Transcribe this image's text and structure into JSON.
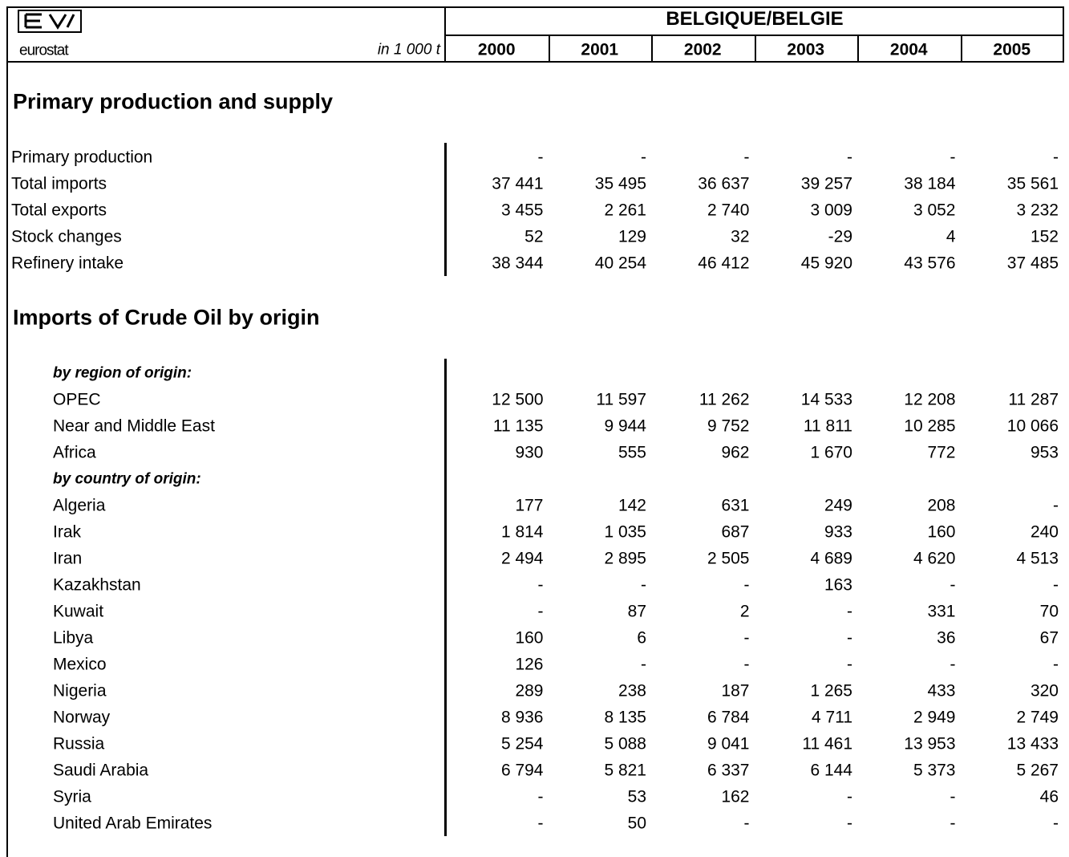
{
  "header": {
    "logo_text": "eurostat",
    "unit": "in 1 000 t",
    "country": "BELGIQUE/BELGIE",
    "years": [
      "2000",
      "2001",
      "2002",
      "2003",
      "2004",
      "2005"
    ]
  },
  "sections": [
    {
      "title": "Primary production and supply",
      "rows": [
        {
          "label": "Primary production",
          "values": [
            "-",
            "-",
            "-",
            "-",
            "-",
            "-"
          ]
        },
        {
          "label": "Total imports",
          "values": [
            "37 441",
            "35 495",
            "36 637",
            "39 257",
            "38 184",
            "35 561"
          ]
        },
        {
          "label": "Total exports",
          "values": [
            "3 455",
            "2 261",
            "2 740",
            "3 009",
            "3 052",
            "3 232"
          ]
        },
        {
          "label": "Stock changes",
          "values": [
            "52",
            "129",
            "32",
            "-29",
            "4",
            "152"
          ]
        },
        {
          "label": "Refinery intake",
          "values": [
            "38 344",
            "40 254",
            "46 412",
            "45 920",
            "43 576",
            "37 485"
          ]
        }
      ]
    },
    {
      "title": "Imports of Crude Oil by origin",
      "rows": [
        {
          "label": "by region of origin:"
        },
        {
          "label": "OPEC",
          "values": [
            "12 500",
            "11 597",
            "11 262",
            "14 533",
            "12 208",
            "11 287"
          ]
        },
        {
          "label": "Near and Middle East",
          "values": [
            "11 135",
            "9 944",
            "9 752",
            "11 811",
            "10 285",
            "10 066"
          ]
        },
        {
          "label": "Africa",
          "values": [
            "930",
            "555",
            "962",
            "1 670",
            "772",
            "953"
          ]
        },
        {
          "label": "by country of origin:"
        },
        {
          "label": "Algeria",
          "values": [
            "177",
            "142",
            "631",
            "249",
            "208",
            "-"
          ]
        },
        {
          "label": "Irak",
          "values": [
            "1 814",
            "1 035",
            "687",
            "933",
            "160",
            "240"
          ]
        },
        {
          "label": "Iran",
          "values": [
            "2 494",
            "2 895",
            "2 505",
            "4 689",
            "4 620",
            "4 513"
          ]
        },
        {
          "label": "Kazakhstan",
          "values": [
            "-",
            "-",
            "-",
            "163",
            "-",
            "-"
          ]
        },
        {
          "label": "Kuwait",
          "values": [
            "-",
            "87",
            "2",
            "-",
            "331",
            "70"
          ]
        },
        {
          "label": "Libya",
          "values": [
            "160",
            "6",
            "-",
            "-",
            "36",
            "67"
          ]
        },
        {
          "label": "Mexico",
          "values": [
            "126",
            "-",
            "-",
            "-",
            "-",
            "-"
          ]
        },
        {
          "label": "Nigeria",
          "values": [
            "289",
            "238",
            "187",
            "1 265",
            "433",
            "320"
          ]
        },
        {
          "label": "Norway",
          "values": [
            "8 936",
            "8 135",
            "6 784",
            "4 711",
            "2 949",
            "2 749"
          ]
        },
        {
          "label": "Russia",
          "values": [
            "5 254",
            "5 088",
            "9 041",
            "11 461",
            "13 953",
            "13 433"
          ]
        },
        {
          "label": "Saudi Arabia",
          "values": [
            "6 794",
            "5 821",
            "6 337",
            "6 144",
            "5 373",
            "5 267"
          ]
        },
        {
          "label": "Syria",
          "values": [
            "-",
            "53",
            "162",
            "-",
            "-",
            "46"
          ]
        },
        {
          "label": "United Arab Emirates",
          "values": [
            "-",
            "50",
            "-",
            "-",
            "-",
            "-"
          ]
        }
      ]
    }
  ]
}
